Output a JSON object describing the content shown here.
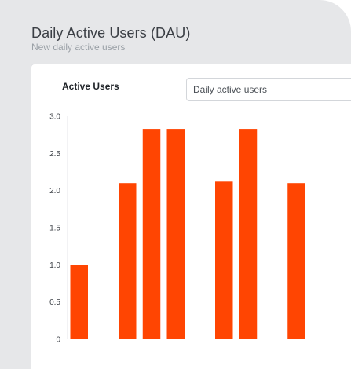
{
  "header": {
    "title": "Daily Active Users (DAU)",
    "subtitle": "New daily active users"
  },
  "card": {
    "label": "Active Users",
    "select_value": "Daily active users"
  },
  "colors": {
    "bar": "#ff4502",
    "background": "#e6e7e9",
    "card": "#ffffff",
    "axis": "#e4e6e8"
  },
  "chart_data": {
    "type": "bar",
    "title": "",
    "xlabel": "",
    "ylabel": "",
    "ylim": [
      0,
      3.0
    ],
    "y_ticks": [
      "3.0",
      "2.5",
      "2.0",
      "1.5",
      "1.0",
      "0.5",
      "0"
    ],
    "grid": false,
    "values": [
      1.0,
      null,
      2.1,
      2.83,
      2.83,
      null,
      2.12,
      2.83,
      null,
      2.1
    ]
  }
}
